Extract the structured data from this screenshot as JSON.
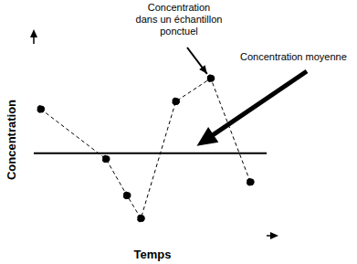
{
  "chart_data": {
    "type": "line",
    "x": [
      0.3,
      3.1,
      4.0,
      4.6,
      6.1,
      7.6,
      9.3
    ],
    "values": [
      6.6,
      4.0,
      2.1,
      0.9,
      7.0,
      8.2,
      2.8
    ],
    "xlim": [
      0,
      10
    ],
    "ylim": [
      0,
      10
    ],
    "tick_labels": false,
    "x_label": "Temps",
    "y_label": "Concentration",
    "color": "#000000",
    "line_style": "dashed",
    "marker": "circle",
    "reference_line": {
      "y": 4.3,
      "label": "Concentration moyenne",
      "x": 7.0
    },
    "annotation": {
      "text": [
        "Concentration",
        "dans un échantillon",
        "ponctuel"
      ],
      "x": 7.6,
      "y": 8.2
    }
  }
}
